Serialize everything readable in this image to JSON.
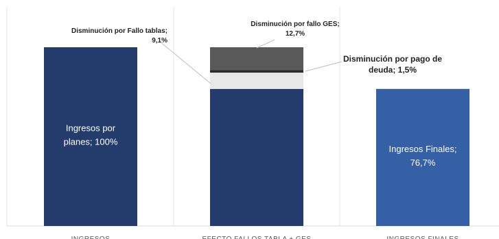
{
  "chart_data": {
    "type": "bar",
    "stacked": true,
    "categories": [
      "INGRESOS",
      "EFECTO FALLOS TABLA + GES",
      "INGRESOS FINALES"
    ],
    "ylim": [
      0,
      100
    ],
    "grid": false,
    "colors": {
      "ingresos": "#243c6b",
      "finales": "#3560a6",
      "fallo_tablas": "#e8e8e8",
      "fallo_ges": "#595959",
      "pago_deuda": "#2b2b2b"
    },
    "bars": [
      {
        "category": "INGRESOS",
        "segments": [
          {
            "id": "ingresos",
            "value": 100,
            "label_lines": [
              "Ingresos por",
              "planes; 100%"
            ]
          }
        ]
      },
      {
        "category": "EFECTO FALLOS TABLA + GES",
        "segments": [
          {
            "id": "base",
            "value": 76.7,
            "label_lines": []
          },
          {
            "id": "fallo_tablas",
            "value": 9.1,
            "label_lines": []
          },
          {
            "id": "pago_deuda",
            "value": 1.5,
            "label_lines": []
          },
          {
            "id": "fallo_ges",
            "value": 12.7,
            "label_lines": []
          }
        ]
      },
      {
        "category": "INGRESOS FINALES",
        "segments": [
          {
            "id": "finales",
            "value": 76.7,
            "label_lines": [
              "Ingresos Finales;",
              "76,7%"
            ]
          }
        ]
      }
    ],
    "annotations": [
      {
        "id": "fallo_tablas",
        "lines": [
          "Disminución por Fallo tablas;",
          "9,1%"
        ]
      },
      {
        "id": "fallo_ges",
        "lines": [
          "Disminución por fallo GES;",
          "12,7%"
        ]
      },
      {
        "id": "pago_deuda",
        "lines": [
          "Disminución por pago de",
          "deuda; 1,5%"
        ]
      }
    ]
  }
}
